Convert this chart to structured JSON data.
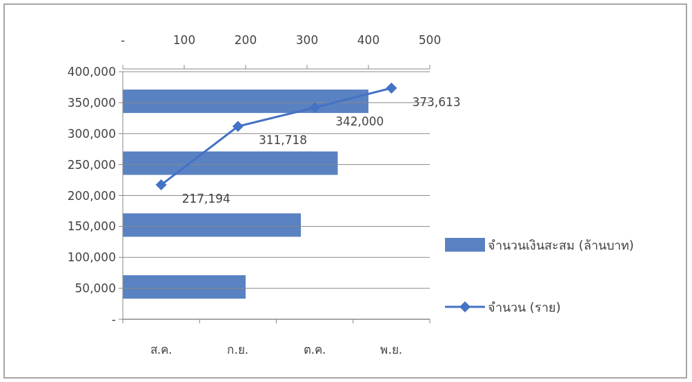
{
  "chart_data": [
    {
      "type": "bar",
      "orientation": "horizontal",
      "categories": [
        null,
        null,
        null,
        null
      ],
      "series": [
        {
          "name": "จำนวนเงินสะสม (ล้านบาท)",
          "type": "bar",
          "axis": "x2",
          "color": "#5a82c2",
          "values": [
            400,
            350,
            290,
            200
          ]
        }
      ],
      "x2lim": [
        0,
        500
      ],
      "x2ticks": [
        {
          "value": 0,
          "label": "-"
        },
        100,
        200,
        300,
        400,
        500
      ],
      "legend": "right"
    },
    {
      "type": "line",
      "categories": [
        "ส.ค.",
        "ก.ย.",
        "ต.ค.",
        "พ.ย."
      ],
      "series": [
        {
          "name": "จำนวน (ราย)",
          "color": "#4472c4",
          "values": [
            217194,
            311718,
            342000,
            373613
          ],
          "value_labels": [
            "217,194",
            "311,718",
            "342,000",
            "373,613"
          ]
        }
      ],
      "ylim": [
        0,
        400000
      ],
      "yticks": [
        {
          "value": 0,
          "label": "-"
        },
        {
          "value": 50000,
          "label": "50,000"
        },
        {
          "value": 100000,
          "label": "100,000"
        },
        {
          "value": 150000,
          "label": "150,000"
        },
        {
          "value": 200000,
          "label": "200,000"
        },
        {
          "value": 250000,
          "label": "250,000"
        },
        {
          "value": 300000,
          "label": "300,000"
        },
        {
          "value": 350000,
          "label": "350,000"
        },
        {
          "value": 400000,
          "label": "400,000"
        }
      ],
      "marker": "diamond",
      "grid": "y",
      "legend": "right"
    }
  ]
}
